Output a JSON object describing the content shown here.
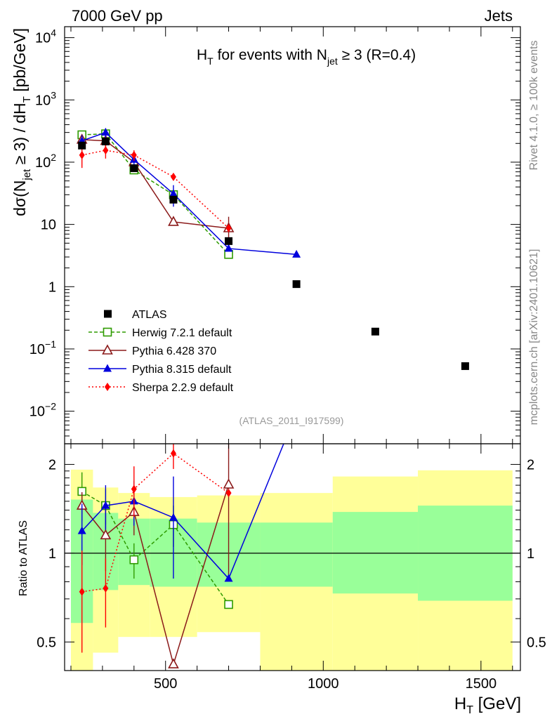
{
  "header": {
    "left": "7000 GeV pp",
    "right": "Jets"
  },
  "side_labels": {
    "rivet": "Rivet 4.1.0, ≥ 100k events",
    "mcplots": "mcplots.cern.ch [arXiv:2401.10621]"
  },
  "chart_data": {
    "type": "scatter",
    "title": {
      "h": "H",
      "h_sub": "T",
      "mid": " for events with N",
      "n_sub": "jet",
      "tail": " ≥ 3 (R=0.4)"
    },
    "analysis_label": "(ATLAS_2011_I917599)",
    "xlabel": {
      "main": "H",
      "sub": "T",
      "unit": " [GeV]"
    },
    "ylabel": {
      "p1": "dσ(N",
      "s1": "jet",
      "p2": " ≥ 3) / dH",
      "s2": "T",
      "p3": " [pb/GeV]"
    },
    "ratio_ylabel": "Ratio to ATLAS",
    "xlim": [
      180,
      1625
    ],
    "ylim": [
      0.003,
      15000
    ],
    "ratio_ylim": [
      0.4,
      2.35
    ],
    "y_scale": "log",
    "x_ticks": [
      "500",
      "1000",
      "1500"
    ],
    "x_tick_values": [
      500,
      1000,
      1500
    ],
    "y_ticks": [
      {
        "v": 10000,
        "base": "10",
        "exp": "4"
      },
      {
        "v": 1000,
        "base": "10",
        "exp": "3"
      },
      {
        "v": 100,
        "base": "10",
        "exp": "2"
      },
      {
        "v": 10,
        "base": "10",
        "exp": ""
      },
      {
        "v": 1,
        "base": "1",
        "exp": ""
      },
      {
        "v": 0.1,
        "base": "10",
        "exp": "−1"
      },
      {
        "v": 0.01,
        "base": "10",
        "exp": "−2"
      }
    ],
    "ratio_ticks": [
      {
        "v": 2,
        "label": "2"
      },
      {
        "v": 1,
        "label": "1"
      },
      {
        "v": 0.5,
        "label": "0.5"
      }
    ],
    "bins": [
      {
        "lo": 200,
        "hi": 270,
        "center": 235
      },
      {
        "lo": 270,
        "hi": 350,
        "center": 310
      },
      {
        "lo": 350,
        "hi": 450,
        "center": 400
      },
      {
        "lo": 450,
        "hi": 600,
        "center": 525
      },
      {
        "lo": 600,
        "hi": 800,
        "center": 700
      },
      {
        "lo": 800,
        "hi": 1030,
        "center": 915
      },
      {
        "lo": 1030,
        "hi": 1300,
        "center": 1165
      },
      {
        "lo": 1300,
        "hi": 1600,
        "center": 1450
      }
    ],
    "data": {
      "name": "ATLAS",
      "values": [
        185,
        215,
        80,
        25,
        5.4,
        1.1,
        0.19,
        0.053
      ],
      "band_green": [
        [
          0.58,
          1.52
        ],
        [
          0.75,
          1.37
        ],
        [
          0.78,
          1.31
        ],
        [
          0.77,
          1.31
        ],
        [
          0.77,
          1.27
        ],
        [
          0.77,
          1.27
        ],
        [
          0.73,
          1.38
        ],
        [
          0.69,
          1.45
        ]
      ],
      "band_yellow": [
        [
          0.36,
          1.92
        ],
        [
          0.46,
          1.67
        ],
        [
          0.52,
          1.6
        ],
        [
          0.52,
          1.55
        ],
        [
          0.54,
          1.57
        ],
        [
          0.4,
          1.6
        ],
        [
          0.4,
          1.82
        ],
        [
          0.4,
          1.91
        ]
      ]
    },
    "series": [
      {
        "name": "Herwig 7.2.1 default",
        "color": "#2e9b00",
        "marker": "open-square",
        "dash": "5,3",
        "x": [
          235,
          310,
          400,
          525,
          700
        ],
        "values": [
          275,
          285,
          75,
          30,
          3.3
        ],
        "ratio": [
          1.62,
          1.45,
          0.95,
          1.25,
          0.67
        ],
        "ratio_err": [
          0.26,
          0.2,
          0.13,
          0.2,
          0.0
        ]
      },
      {
        "name": "Pythia 6.428 370",
        "color": "#8b1a1a",
        "marker": "open-triangle",
        "dash": "",
        "x": [
          235,
          310,
          400,
          525,
          700
        ],
        "values": [
          230,
          220,
          100,
          11,
          8.7
        ],
        "ratio": [
          1.45,
          1.15,
          1.38,
          0.42,
          1.71
        ],
        "ratio_err": [
          0.16,
          0.28,
          0.23,
          0.0,
          0.9
        ]
      },
      {
        "name": "Pythia 8.315 default",
        "color": "#0000dd",
        "marker": "filled-triangle",
        "dash": "",
        "x": [
          235,
          310,
          400,
          525,
          700,
          915
        ],
        "values": [
          220,
          300,
          110,
          31,
          4.1,
          3.3
        ],
        "ratio": [
          1.19,
          1.45,
          1.5,
          1.32,
          0.82,
          3.0
        ],
        "ratio_err": [
          0.28,
          0.25,
          0.26,
          0.5,
          0.0,
          0.0
        ]
      },
      {
        "name": "Sherpa 2.2.9 default",
        "color": "#ff0000",
        "marker": "filled-diamond",
        "dash": "2,3",
        "x": [
          235,
          310,
          400,
          525,
          700
        ],
        "values": [
          130,
          155,
          130,
          58,
          8.7
        ],
        "ratio": [
          0.74,
          0.76,
          1.65,
          2.18,
          1.6
        ],
        "ratio_err": [
          0.28,
          0.2,
          0.32,
          0.25,
          0.0
        ]
      }
    ]
  }
}
